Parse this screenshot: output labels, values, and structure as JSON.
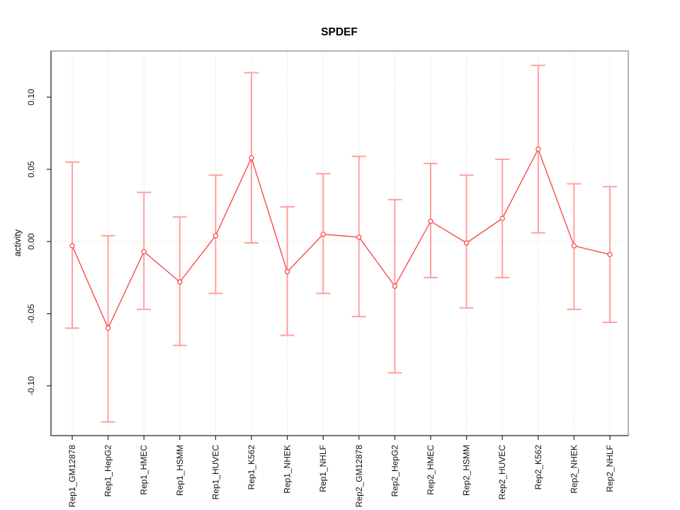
{
  "chart_data": {
    "type": "line",
    "subtype": "points-with-error-bars",
    "title": "SPDEF",
    "xlabel": "",
    "ylabel": "activity",
    "categories": [
      "Rep1_GM12878",
      "Rep1_HepG2",
      "Rep1_HMEC",
      "Rep1_HSMM",
      "Rep1_HUVEC",
      "Rep1_K562",
      "Rep1_NHEK",
      "Rep1_NHLF",
      "Rep2_GM12878",
      "Rep2_HepG2",
      "Rep2_HMEC",
      "Rep2_HSMM",
      "Rep2_HUVEC",
      "Rep2_K562",
      "Rep2_NHEK",
      "Rep2_NHLF"
    ],
    "series": [
      {
        "name": "activity",
        "values": [
          -0.003,
          -0.06,
          -0.007,
          -0.028,
          0.004,
          0.058,
          -0.021,
          0.005,
          0.003,
          -0.031,
          0.014,
          -0.001,
          0.016,
          0.064,
          -0.003,
          -0.009
        ],
        "err_high": [
          0.055,
          0.004,
          0.034,
          0.017,
          0.046,
          0.117,
          0.024,
          0.047,
          0.059,
          0.029,
          0.054,
          0.046,
          0.057,
          0.122,
          0.04,
          0.038
        ],
        "err_low": [
          -0.06,
          -0.125,
          -0.047,
          -0.072,
          -0.036,
          -0.001,
          -0.065,
          -0.036,
          -0.052,
          -0.091,
          -0.025,
          -0.046,
          -0.025,
          0.006,
          -0.047,
          -0.056
        ]
      }
    ],
    "ylim": [
      -0.1345,
      0.132
    ],
    "yticks": [
      -0.1,
      -0.05,
      0.0,
      0.05,
      0.1
    ],
    "ytick_labels": [
      "-0.10",
      "-0.05",
      "0.00",
      "0.05",
      "0.10"
    ],
    "x_tick_label_rotation": 90,
    "y_tick_label_rotation": 90,
    "grid": "dotted vertical line at every category; dotted horizontal line at y=0 only",
    "legend": "none",
    "colors": {
      "series_line": "#f84b4b",
      "point_stroke": "#f84b4b",
      "point_fill": "#ffffff",
      "error_bar": "#ffa0a0",
      "grid_line": "#d9d9d9",
      "box_border": "#8f8f8f",
      "axis_line": "#3a3a3a",
      "tick_mark": "#333333",
      "text": "#000000",
      "background": "#ffffff"
    }
  }
}
